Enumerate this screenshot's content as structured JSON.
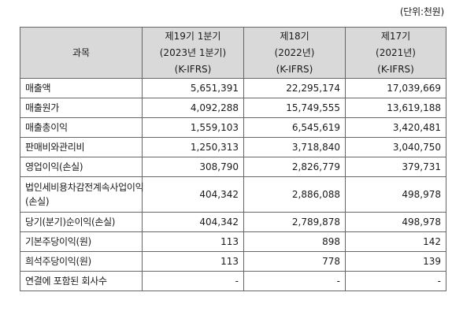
{
  "unit_label": "(단위:천원)",
  "header": {
    "item": "과목",
    "periods": [
      {
        "line1": "제19기 1분기",
        "line2": "(2023년 1분기)",
        "line3": "(K-IFRS)"
      },
      {
        "line1": "제18기",
        "line2": "(2022년)",
        "line3": "(K-IFRS)"
      },
      {
        "line1": "제17기",
        "line2": "(2021년)",
        "line3": "(K-IFRS)"
      }
    ]
  },
  "rows": [
    {
      "label": "매출액",
      "values": [
        "5,651,391",
        "22,295,174",
        "17,039,669"
      ]
    },
    {
      "label": "매출원가",
      "values": [
        "4,092,288",
        "15,749,555",
        "13,619,188"
      ]
    },
    {
      "label": "매출총이익",
      "values": [
        "1,559,103",
        "6,545,619",
        "3,420,481"
      ]
    },
    {
      "label": "판매비와관리비",
      "values": [
        "1,250,313",
        "3,718,840",
        "3,040,750"
      ]
    },
    {
      "label": "영업이익(손실)",
      "values": [
        "308,790",
        "2,826,779",
        "379,731"
      ]
    },
    {
      "label": "법인세비용차감전계속사업이익(손실)",
      "values": [
        "404,342",
        "2,886,088",
        "498,978"
      ]
    },
    {
      "label": "당기(분기)순이익(손실)",
      "values": [
        "404,342",
        "2,789,878",
        "498,978"
      ]
    },
    {
      "label": "기본주당이익(원)",
      "values": [
        "113",
        "898",
        "142"
      ]
    },
    {
      "label": "희석주당이익(원)",
      "values": [
        "113",
        "778",
        "139"
      ]
    },
    {
      "label": "연결에 포함된 회사수",
      "values": [
        "-",
        "-",
        "-"
      ]
    }
  ]
}
